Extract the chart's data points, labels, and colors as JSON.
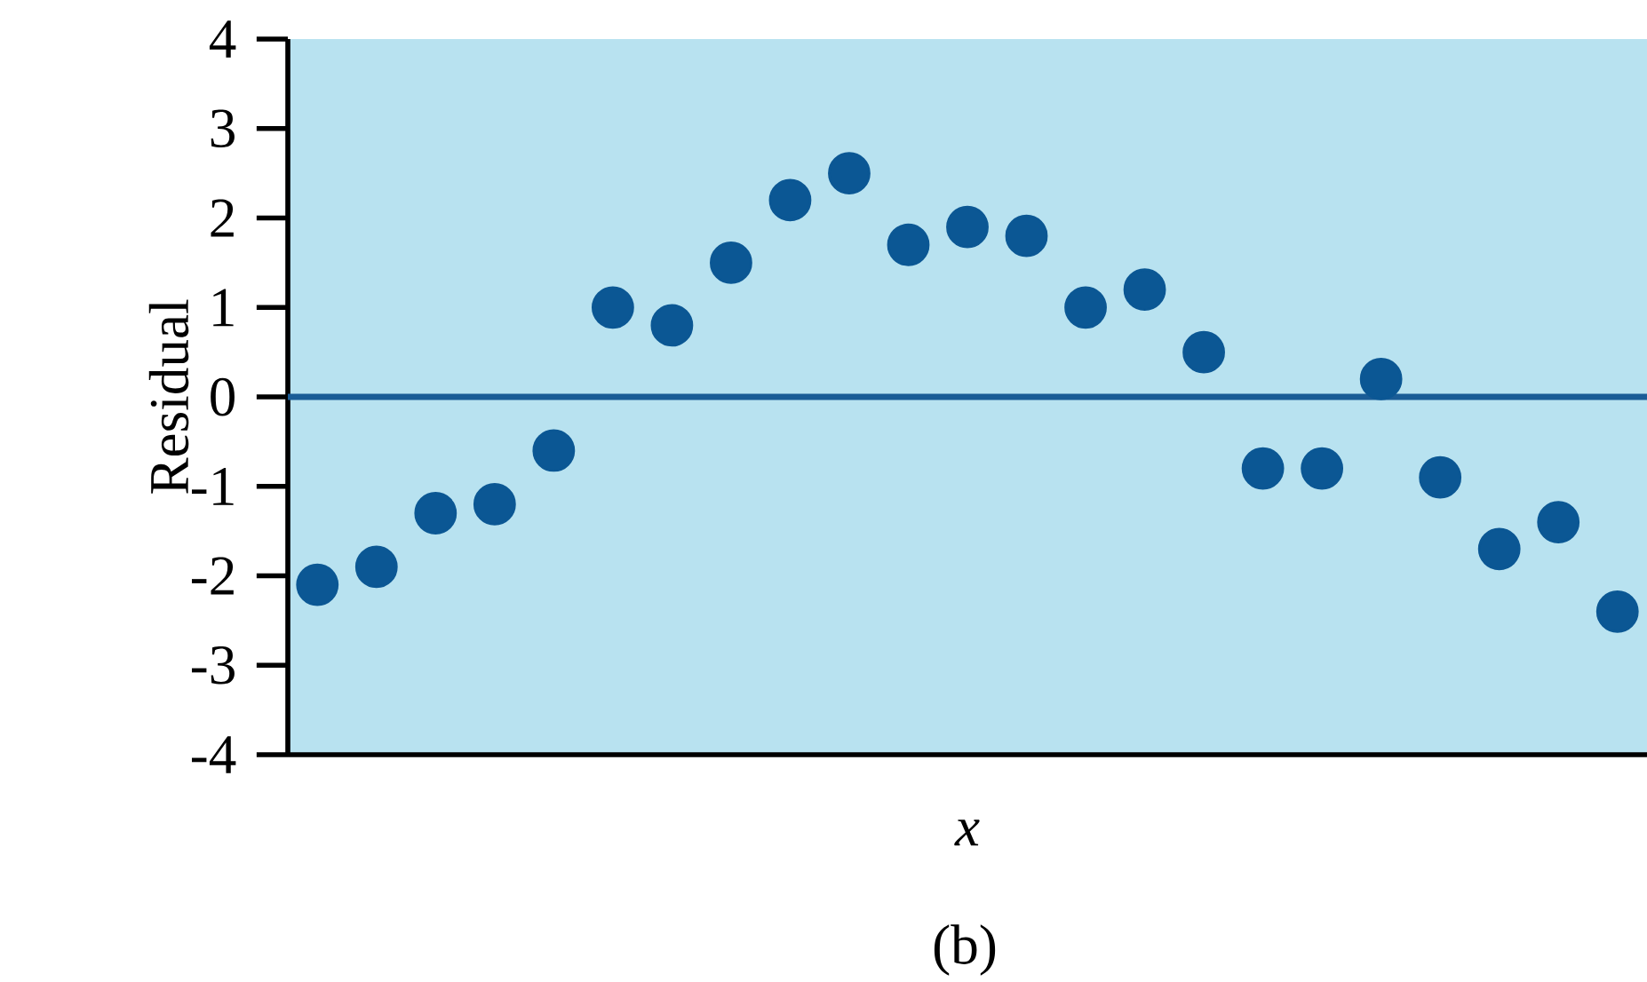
{
  "chart_data": {
    "type": "scatter",
    "xlabel": "x",
    "ylabel": "Residual",
    "categories": [
      null,
      null,
      null,
      null,
      null,
      null,
      null,
      null,
      null,
      null,
      null,
      null,
      null,
      null,
      null,
      null,
      null,
      null,
      null,
      null,
      null,
      null,
      null
    ],
    "values": [
      -2.1,
      -1.9,
      -1.3,
      -1.2,
      -0.6,
      1.0,
      0.8,
      1.5,
      2.2,
      2.5,
      1.7,
      1.9,
      1.8,
      1.0,
      1.2,
      0.5,
      -0.8,
      -0.8,
      0.2,
      -0.9,
      -1.7,
      -1.4,
      -2.4
    ],
    "color": "#0b5794",
    "marker": "circle",
    "ylim": [
      -4,
      4
    ],
    "yticks": [
      -4,
      -3,
      -2,
      -1,
      0,
      1,
      2,
      3,
      4
    ],
    "grid": false,
    "ref_lines": [
      {
        "axis": "y",
        "value": 0,
        "color": "#1a5c96"
      }
    ],
    "annotations": [
      "(b)"
    ]
  }
}
